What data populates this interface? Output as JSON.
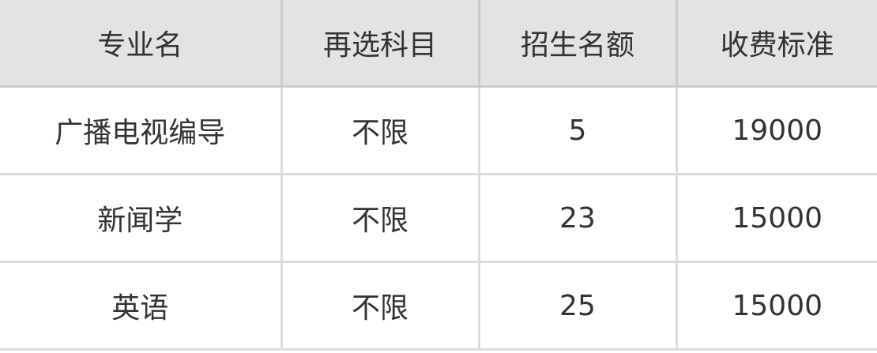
{
  "table": {
    "headers": [
      "专业名",
      "再选科目",
      "招生名额",
      "收费标准"
    ],
    "rows": [
      [
        "广播电视编导",
        "不限",
        "5",
        "19000"
      ],
      [
        "新闻学",
        "不限",
        "23",
        "15000"
      ],
      [
        "英语",
        "不限",
        "25",
        "15000"
      ]
    ]
  },
  "colors": {
    "header_bg": "#e3e3e3",
    "border": "#dcdcdc",
    "text": "#333333"
  }
}
